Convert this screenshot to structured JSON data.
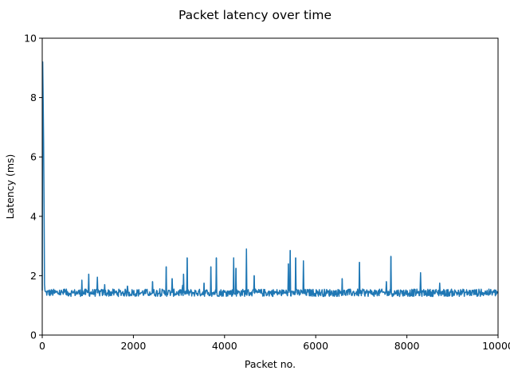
{
  "chart_data": {
    "type": "line",
    "title": "Packet latency over time",
    "xlabel": "Packet no.",
    "ylabel": "Latency (ms)",
    "xlim": [
      0,
      10000
    ],
    "ylim": [
      0,
      10
    ],
    "xticks": [
      0,
      2000,
      4000,
      6000,
      8000,
      10000
    ],
    "yticks": [
      0,
      2,
      4,
      6,
      8,
      10
    ],
    "grid": false,
    "line_color": "#1f77b4",
    "baseline": {
      "min": 1.3,
      "max": 1.55,
      "typical": 1.42
    },
    "startup": [
      {
        "x": 0,
        "y": 1.5
      },
      {
        "x": 10,
        "y": 9.2
      },
      {
        "x": 20,
        "y": 8.0
      },
      {
        "x": 30,
        "y": 6.5
      },
      {
        "x": 40,
        "y": 4.4
      },
      {
        "x": 50,
        "y": 1.7
      },
      {
        "x": 60,
        "y": 1.5
      }
    ],
    "spikes": [
      {
        "x": 870,
        "y": 1.85
      },
      {
        "x": 1020,
        "y": 2.05
      },
      {
        "x": 1210,
        "y": 1.95
      },
      {
        "x": 1370,
        "y": 1.7
      },
      {
        "x": 1870,
        "y": 1.65
      },
      {
        "x": 2420,
        "y": 1.8
      },
      {
        "x": 2720,
        "y": 2.3
      },
      {
        "x": 2850,
        "y": 1.9
      },
      {
        "x": 3100,
        "y": 2.05
      },
      {
        "x": 3180,
        "y": 2.6
      },
      {
        "x": 3550,
        "y": 1.75
      },
      {
        "x": 3700,
        "y": 2.3
      },
      {
        "x": 3820,
        "y": 2.6
      },
      {
        "x": 4200,
        "y": 2.6
      },
      {
        "x": 4250,
        "y": 2.25
      },
      {
        "x": 4480,
        "y": 2.9
      },
      {
        "x": 4650,
        "y": 2.0
      },
      {
        "x": 5400,
        "y": 2.4
      },
      {
        "x": 5440,
        "y": 2.85
      },
      {
        "x": 5560,
        "y": 2.6
      },
      {
        "x": 5730,
        "y": 2.5
      },
      {
        "x": 6580,
        "y": 1.9
      },
      {
        "x": 6960,
        "y": 2.45
      },
      {
        "x": 7550,
        "y": 1.8
      },
      {
        "x": 7650,
        "y": 2.65
      },
      {
        "x": 8300,
        "y": 2.1
      },
      {
        "x": 8720,
        "y": 1.75
      }
    ]
  }
}
